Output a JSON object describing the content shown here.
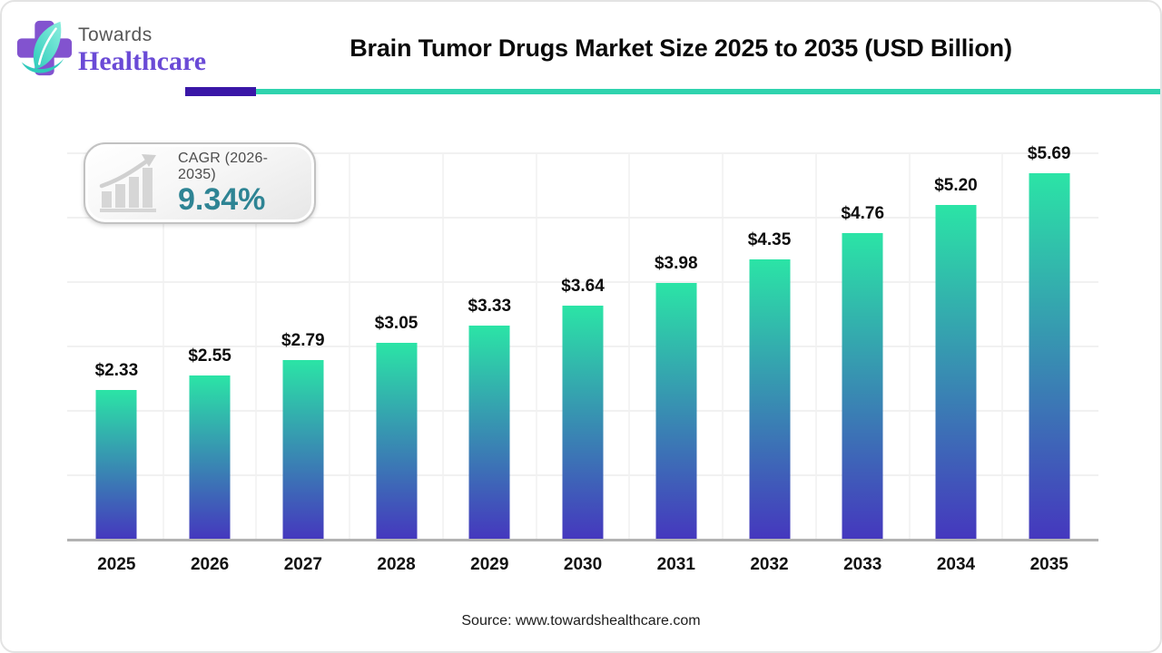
{
  "brand": {
    "line1": "Towards",
    "line2": "Healthcare"
  },
  "header": {
    "title": "Brain Tumor Drugs Market Size 2025 to 2035 (USD Billion)"
  },
  "cagr_badge": {
    "label": "CAGR (2026-2035)",
    "value": "9.34%",
    "icon": "growth-bar-chart-icon"
  },
  "chart_data": {
    "type": "bar",
    "title": "Brain Tumor Drugs Market Size 2025 to 2035 (USD Billion)",
    "unit": "USD Billion",
    "categories": [
      "2025",
      "2026",
      "2027",
      "2028",
      "2029",
      "2030",
      "2031",
      "2032",
      "2033",
      "2034",
      "2035"
    ],
    "values": [
      2.33,
      2.55,
      2.79,
      3.05,
      3.33,
      3.64,
      3.98,
      4.35,
      4.76,
      5.2,
      5.69
    ],
    "value_labels": [
      "$2.33",
      "$2.55",
      "$2.79",
      "$3.05",
      "$3.33",
      "$3.64",
      "$3.98",
      "$4.35",
      "$4.76",
      "$5.20",
      "$5.69"
    ],
    "xlabel": "",
    "ylabel": "",
    "ylim": [
      0,
      6
    ],
    "grid": "faint horizontal gridlines every 1.0; faint vertical category separators",
    "legend": "none",
    "bar_color_top": "#2be4a6",
    "bar_color_bottom": "#4537be"
  },
  "footer": {
    "source": "Source: www.towardshealthcare.com"
  },
  "colors": {
    "accent_purple": "#3a17a7",
    "accent_teal": "#2fd3ae",
    "cagr_value_teal": "#2e8494",
    "axis_line": "#b2b2b2",
    "brand_purple": "#6a4ad6"
  }
}
